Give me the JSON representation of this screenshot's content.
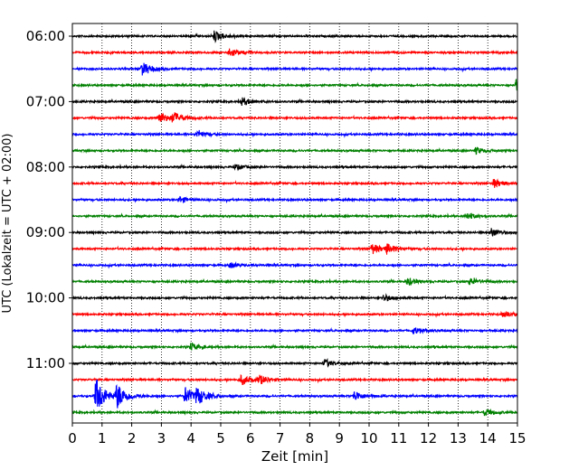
{
  "chart_data": {
    "type": "line",
    "title": "",
    "xlabel": "Zeit  [min]",
    "ylabel": "UTC (Lokalzeit = UTC + 02:00)",
    "xlim": [
      0,
      15
    ],
    "x_ticks": [
      0,
      1,
      2,
      3,
      4,
      5,
      6,
      7,
      8,
      9,
      10,
      11,
      12,
      13,
      14,
      15
    ],
    "x_tick_labels": [
      "0",
      "1",
      "2",
      "3",
      "4",
      "5",
      "6",
      "7",
      "8",
      "9",
      "10",
      "11",
      "12",
      "13",
      "14",
      "15"
    ],
    "y_tick_labels": [
      "06:00",
      "07:00",
      "08:00",
      "09:00",
      "10:00",
      "11:00"
    ],
    "grid": "vertical dotted lines at each minute",
    "colors_cycle": [
      "#000000",
      "#ff0000",
      "#0000ff",
      "#008000"
    ],
    "series": [
      {
        "start": "06:00",
        "color": "#000000",
        "events": [
          {
            "t": 4.8,
            "amp": 1.0
          }
        ]
      },
      {
        "start": "06:15",
        "color": "#ff0000",
        "events": [
          {
            "t": 5.3,
            "amp": 0.8
          }
        ]
      },
      {
        "start": "06:30",
        "color": "#0000ff",
        "events": [
          {
            "t": 2.35,
            "amp": 1.2
          }
        ]
      },
      {
        "start": "06:45",
        "color": "#008000",
        "events": [
          {
            "t": 14.95,
            "amp": 1.0
          }
        ]
      },
      {
        "start": "07:00",
        "color": "#000000",
        "events": [
          {
            "t": 5.7,
            "amp": 0.7
          }
        ]
      },
      {
        "start": "07:15",
        "color": "#ff0000",
        "events": [
          {
            "t": 2.9,
            "amp": 1.1
          },
          {
            "t": 3.4,
            "amp": 1.0
          }
        ]
      },
      {
        "start": "07:30",
        "color": "#0000ff",
        "events": [
          {
            "t": 4.2,
            "amp": 0.6
          }
        ]
      },
      {
        "start": "07:45",
        "color": "#008000",
        "events": [
          {
            "t": 13.6,
            "amp": 0.6
          }
        ]
      },
      {
        "start": "08:00",
        "color": "#000000",
        "events": [
          {
            "t": 5.5,
            "amp": 0.5
          }
        ]
      },
      {
        "start": "08:15",
        "color": "#ff0000",
        "events": [
          {
            "t": 14.2,
            "amp": 0.8
          }
        ]
      },
      {
        "start": "08:30",
        "color": "#0000ff",
        "events": [
          {
            "t": 3.6,
            "amp": 0.6
          }
        ]
      },
      {
        "start": "08:45",
        "color": "#008000",
        "events": [
          {
            "t": 13.3,
            "amp": 0.6
          }
        ]
      },
      {
        "start": "09:00",
        "color": "#000000",
        "events": [
          {
            "t": 14.1,
            "amp": 0.8
          }
        ]
      },
      {
        "start": "09:15",
        "color": "#ff0000",
        "events": [
          {
            "t": 10.1,
            "amp": 1.0
          },
          {
            "t": 10.6,
            "amp": 0.8
          }
        ]
      },
      {
        "start": "09:30",
        "color": "#0000ff",
        "events": [
          {
            "t": 5.3,
            "amp": 0.5
          }
        ]
      },
      {
        "start": "09:45",
        "color": "#008000",
        "events": [
          {
            "t": 11.3,
            "amp": 0.7
          },
          {
            "t": 13.4,
            "amp": 0.6
          }
        ]
      },
      {
        "start": "10:00",
        "color": "#000000",
        "events": [
          {
            "t": 10.5,
            "amp": 0.6
          }
        ]
      },
      {
        "start": "10:15",
        "color": "#ff0000",
        "events": [
          {
            "t": 14.5,
            "amp": 0.6
          }
        ]
      },
      {
        "start": "10:30",
        "color": "#0000ff",
        "events": [
          {
            "t": 11.5,
            "amp": 0.6
          }
        ]
      },
      {
        "start": "10:45",
        "color": "#008000",
        "events": [
          {
            "t": 4.0,
            "amp": 0.6
          }
        ]
      },
      {
        "start": "11:00",
        "color": "#000000",
        "events": [
          {
            "t": 8.5,
            "amp": 0.7
          }
        ]
      },
      {
        "start": "11:15",
        "color": "#ff0000",
        "events": [
          {
            "t": 5.7,
            "amp": 0.9
          },
          {
            "t": 6.3,
            "amp": 0.8
          }
        ]
      },
      {
        "start": "11:30",
        "color": "#0000ff",
        "events": [
          {
            "t": 0.8,
            "amp": 3.3
          },
          {
            "t": 1.5,
            "amp": 2.2
          },
          {
            "t": 3.8,
            "amp": 1.6
          },
          {
            "t": 4.2,
            "amp": 1.4
          },
          {
            "t": 9.5,
            "amp": 0.9
          }
        ]
      },
      {
        "start": "11:45",
        "color": "#008000",
        "events": [
          {
            "t": 13.9,
            "amp": 0.6
          }
        ]
      }
    ]
  }
}
